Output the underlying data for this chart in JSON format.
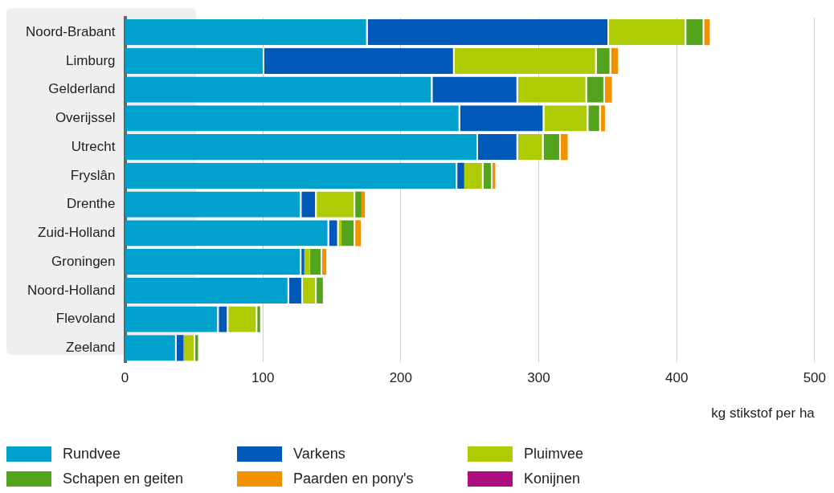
{
  "chart_data": {
    "type": "bar",
    "orientation": "horizontal",
    "stacked": true,
    "xlabel": "kg stikstof per ha",
    "categories": [
      "Noord-Brabant",
      "Limburg",
      "Gelderland",
      "Overijssel",
      "Utrecht",
      "Fryslân",
      "Drenthe",
      "Zuid-Holland",
      "Groningen",
      "Noord-Holland",
      "Flevoland",
      "Zeeland"
    ],
    "series": [
      {
        "name": "Rundvee",
        "color": "#00a1cd",
        "values": [
          176,
          101,
          223,
          243,
          256,
          241,
          128,
          148,
          128,
          119,
          68,
          37.5
        ]
      },
      {
        "name": "Varkens",
        "color": "#0058b8",
        "values": [
          175,
          138,
          62,
          61,
          29,
          5,
          11,
          7,
          2,
          10,
          7,
          5
        ]
      },
      {
        "name": "Pluimvee",
        "color": "#afcb05",
        "values": [
          56,
          103,
          50,
          32,
          18.5,
          14,
          28,
          2,
          4,
          10,
          21,
          8.5
        ]
      },
      {
        "name": "Schapen en geiten",
        "color": "#53a31d",
        "values": [
          13,
          10.5,
          13,
          9,
          12.5,
          6.5,
          4.5,
          10,
          9,
          4.5,
          2,
          2
        ]
      },
      {
        "name": "Paarden en pony's",
        "color": "#f39200",
        "values": [
          4,
          5,
          5,
          3,
          5,
          2,
          2.5,
          4,
          3,
          0,
          0,
          0
        ]
      },
      {
        "name": "Konijnen",
        "color": "#af0e80",
        "values": [
          0,
          0,
          0,
          0,
          0,
          0,
          0,
          0,
          0,
          0,
          0,
          0
        ]
      }
    ],
    "xlim": [
      0,
      500
    ],
    "xticks": [
      0,
      100,
      200,
      300,
      400,
      500
    ],
    "grid": "x",
    "legend": "bottom"
  }
}
